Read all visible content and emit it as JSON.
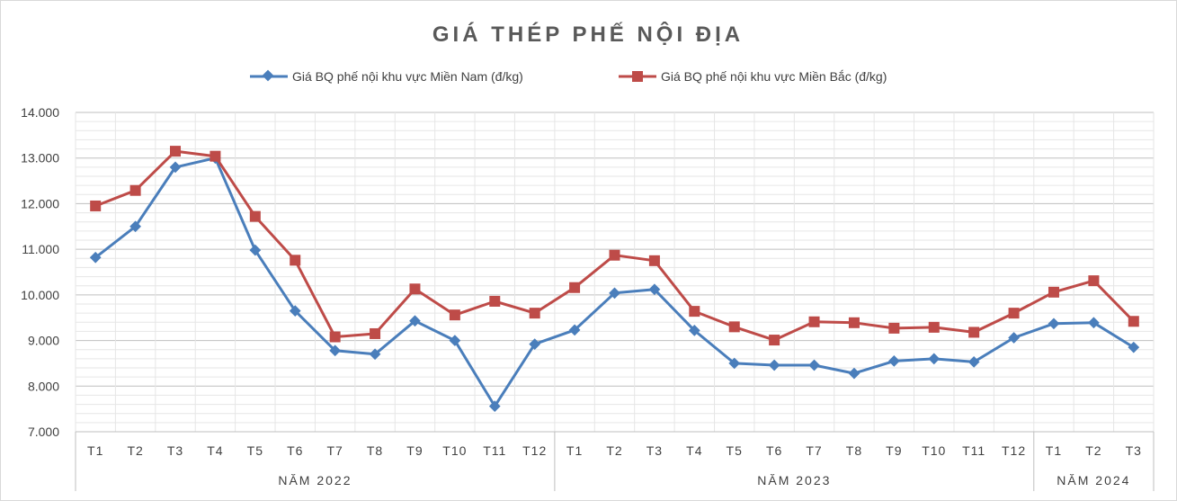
{
  "chart_data": {
    "type": "line",
    "title": "GIÁ THÉP PHẾ NỘI ĐỊA",
    "xlabel": "",
    "ylabel": "",
    "ylim": [
      7000,
      14000
    ],
    "y_ticks": [
      "7.000",
      "8.000",
      "9.000",
      "10.000",
      "11.000",
      "12.000",
      "13.000",
      "14.000"
    ],
    "y_tick_values": [
      7000,
      8000,
      9000,
      10000,
      11000,
      12000,
      13000,
      14000
    ],
    "grid": true,
    "legend_position": "top-center",
    "categories": [
      "T1",
      "T2",
      "T3",
      "T4",
      "T5",
      "T6",
      "T7",
      "T8",
      "T9",
      "T10",
      "T11",
      "T12",
      "T1",
      "T2",
      "T3",
      "T4",
      "T5",
      "T6",
      "T7",
      "T8",
      "T9",
      "T10",
      "T11",
      "T12",
      "T1",
      "T2",
      "T3"
    ],
    "groups": [
      {
        "label": "NĂM 2022",
        "count": 12
      },
      {
        "label": "NĂM 2023",
        "count": 12
      },
      {
        "label": "NĂM 2024",
        "count": 3
      }
    ],
    "series": [
      {
        "name": "Giá BQ phế nội khu vực Miền Nam (đ/kg)",
        "color": "#4a7ebb",
        "marker": "diamond",
        "values": [
          10820,
          11500,
          12800,
          13000,
          10980,
          9650,
          8780,
          8700,
          9430,
          9000,
          7560,
          8920,
          9230,
          10040,
          10120,
          9220,
          8500,
          8460,
          8460,
          8280,
          8550,
          8600,
          8530,
          9060,
          9370,
          9390,
          8850
        ]
      },
      {
        "name": "Giá BQ phế nội khu vực Miền Bắc (đ/kg)",
        "color": "#be4b48",
        "marker": "square",
        "values": [
          11950,
          12290,
          13150,
          13040,
          11720,
          10760,
          9080,
          9150,
          10130,
          9560,
          9860,
          9600,
          10160,
          10870,
          10750,
          9640,
          9300,
          9010,
          9410,
          9390,
          9270,
          9290,
          9180,
          9600,
          10060,
          10310,
          9420
        ]
      }
    ]
  }
}
